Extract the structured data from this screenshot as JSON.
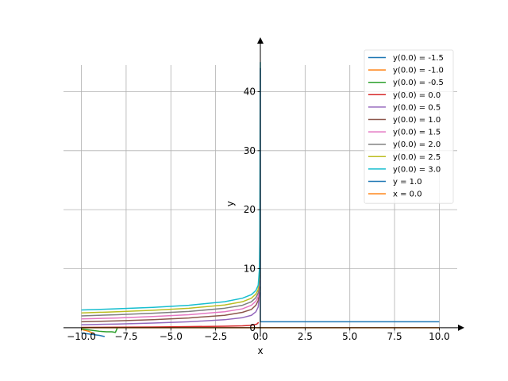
{
  "chart_data": {
    "type": "line",
    "title": "",
    "xlabel": "x",
    "ylabel": "y",
    "xlim": [
      -11.0,
      11.0
    ],
    "ylim": [
      -1.5,
      48.0
    ],
    "grid": true,
    "legend_position": "upper-right",
    "x_ticks": [
      -10.0,
      -7.5,
      -5.0,
      -2.5,
      0.0,
      2.5,
      5.0,
      7.5,
      10.0
    ],
    "x_tick_labels": [
      "−10.0",
      "−7.5",
      "−5.0",
      "−2.5",
      "0.0",
      "2.5",
      "5.0",
      "7.5",
      "10.0"
    ],
    "y_ticks": [
      0,
      10,
      20,
      30,
      40
    ],
    "y_tick_labels": [
      "0",
      "10",
      "20",
      "30",
      "40"
    ],
    "colors": [
      "#1f77b4",
      "#ff7f0e",
      "#2ca02c",
      "#d62728",
      "#9467bd",
      "#8c564b",
      "#e377c2",
      "#7f7f7f",
      "#bcbd22",
      "#17becf"
    ],
    "series": [
      {
        "name": "y(0.0) = -1.5",
        "color": "#1f77b4",
        "x": [
          -10,
          -9.5,
          -9.0,
          -8.7
        ],
        "y": [
          -0.9,
          -1.1,
          -1.3,
          -1.5
        ]
      },
      {
        "name": "y(0.0) = -1.0",
        "color": "#ff7f0e",
        "x": [
          -10,
          -9.6,
          -9.3
        ],
        "y": [
          -0.3,
          -0.6,
          -1.0
        ]
      },
      {
        "name": "y(0.0) = -0.5",
        "color": "#2ca02c",
        "x": [
          -10,
          -9.5,
          -9.0,
          -8.6,
          -8.3,
          -8.1,
          -8.0
        ],
        "y": [
          -0.2,
          -0.4,
          -0.6,
          -0.7,
          -0.7,
          -0.8,
          -0.1
        ]
      },
      {
        "name": "y(0.0) = 0.0",
        "color": "#d62728",
        "x": [
          -10,
          -8,
          -6,
          -4,
          -2,
          -1,
          -0.5,
          -0.2,
          -0.1
        ],
        "y": [
          0.05,
          0.08,
          0.12,
          0.18,
          0.25,
          0.32,
          0.4,
          0.6,
          0.9
        ]
      },
      {
        "name": "y(0.0) = 0.5",
        "color": "#9467bd",
        "x": [
          -10,
          -8,
          -6,
          -4,
          -2,
          -1,
          -0.5,
          -0.25,
          -0.12,
          -0.05
        ],
        "y": [
          0.5,
          0.62,
          0.78,
          1.0,
          1.35,
          1.7,
          2.1,
          2.7,
          3.5,
          6.0
        ]
      },
      {
        "name": "y(0.0) = 1.0",
        "color": "#8c564b",
        "x": [
          -10,
          -8,
          -6,
          -4,
          -2,
          -1,
          -0.5,
          -0.25,
          -0.12,
          -0.05
        ],
        "y": [
          1.0,
          1.15,
          1.35,
          1.65,
          2.1,
          2.6,
          3.1,
          3.8,
          4.6,
          7.0
        ]
      },
      {
        "name": "y(0.0) = 1.5",
        "color": "#e377c2",
        "x": [
          -10,
          -8,
          -6,
          -4,
          -2,
          -1,
          -0.5,
          -0.25,
          -0.12,
          -0.05
        ],
        "y": [
          1.5,
          1.65,
          1.9,
          2.2,
          2.7,
          3.2,
          3.8,
          4.5,
          5.3,
          8.0
        ]
      },
      {
        "name": "y(0.0) = 2.0",
        "color": "#7f7f7f",
        "x": [
          -10,
          -8,
          -6,
          -4,
          -2,
          -1,
          -0.5,
          -0.25,
          -0.12,
          -0.05
        ],
        "y": [
          2.0,
          2.2,
          2.45,
          2.75,
          3.3,
          3.8,
          4.4,
          5.1,
          5.9,
          9.0
        ]
      },
      {
        "name": "y(0.0) = 2.5",
        "color": "#bcbd22",
        "x": [
          -10,
          -8,
          -6,
          -4,
          -2,
          -1,
          -0.5,
          -0.25,
          -0.12,
          -0.05
        ],
        "y": [
          2.5,
          2.7,
          2.95,
          3.3,
          3.85,
          4.4,
          5.0,
          5.7,
          6.5,
          9.5
        ]
      },
      {
        "name": "y(0.0) = 3.0",
        "color": "#17becf",
        "x": [
          -10,
          -8,
          -6,
          -4,
          -2,
          -1,
          -0.5,
          -0.25,
          -0.12,
          -0.05,
          -0.03,
          -0.02,
          -0.01,
          0.0
        ],
        "y": [
          3.0,
          3.2,
          3.45,
          3.8,
          4.4,
          5.0,
          5.6,
          6.3,
          7.2,
          10.0,
          15.0,
          25.0,
          38.0,
          45.0
        ]
      },
      {
        "name": "y = 1.0",
        "color": "#1f77b4",
        "x": [
          0.0,
          0.0,
          10.0
        ],
        "y": [
          44.0,
          1.0,
          1.0
        ]
      },
      {
        "name": "x = 0.0",
        "color": "#ff7f0e",
        "x": [
          -10.0,
          10.0
        ],
        "y": [
          0.0,
          0.0
        ]
      }
    ]
  }
}
